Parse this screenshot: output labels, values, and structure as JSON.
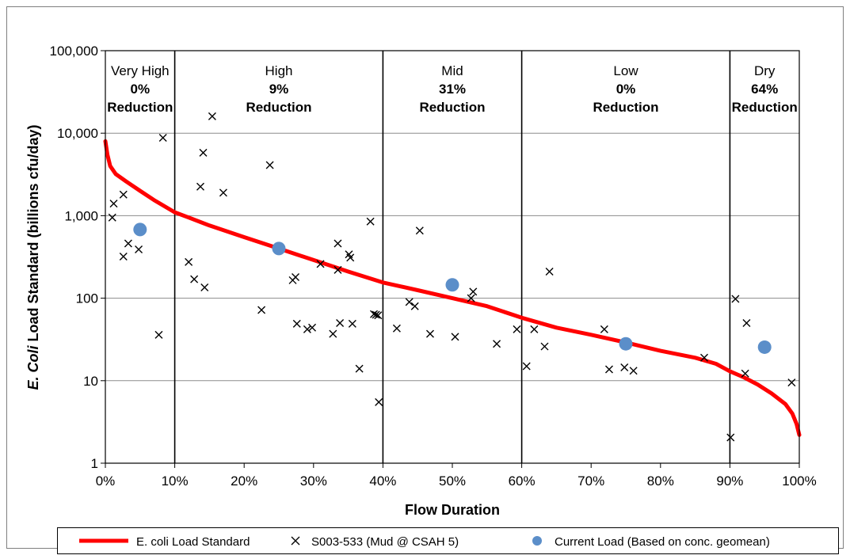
{
  "chart_data": {
    "type": "scatter",
    "xlabel": "Flow Duration",
    "ylabel_italic": "E. Coli",
    "ylabel_rest": " Load Standard (billions cfu/day)",
    "xlim": [
      0,
      100
    ],
    "ylim": [
      1,
      100000
    ],
    "yscale": "log",
    "grid": true,
    "x_ticks": [
      0,
      10,
      20,
      30,
      40,
      50,
      60,
      70,
      80,
      90,
      100
    ],
    "x_tick_labels": [
      "0%",
      "10%",
      "20%",
      "30%",
      "40%",
      "50%",
      "60%",
      "70%",
      "80%",
      "90%",
      "100%"
    ],
    "y_ticks": [
      1,
      10,
      100,
      1000,
      10000,
      100000
    ],
    "y_tick_labels": [
      "1",
      "10",
      "100",
      "1,000",
      "10,000",
      "100,000"
    ],
    "zones": [
      {
        "name": "Very High",
        "pct": "0%",
        "action": "Reduction",
        "from": 0,
        "to": 10
      },
      {
        "name": "High",
        "pct": "9%",
        "action": "Reduction",
        "from": 10,
        "to": 40
      },
      {
        "name": "Mid",
        "pct": "31%",
        "action": "Reduction",
        "from": 40,
        "to": 60
      },
      {
        "name": "Low",
        "pct": "0%",
        "action": "Reduction",
        "from": 60,
        "to": 90
      },
      {
        "name": "Dry",
        "pct": "64%",
        "action": "Reduction",
        "from": 90,
        "to": 100
      }
    ],
    "series": [
      {
        "name": "E. coli Load Standard",
        "kind": "line",
        "color": "#ff0000",
        "points": [
          [
            0,
            8000
          ],
          [
            0.3,
            5500
          ],
          [
            0.7,
            4000
          ],
          [
            1.5,
            3200
          ],
          [
            3,
            2600
          ],
          [
            5,
            2000
          ],
          [
            7,
            1550
          ],
          [
            10,
            1100
          ],
          [
            12,
            950
          ],
          [
            15,
            760
          ],
          [
            20,
            550
          ],
          [
            25,
            400
          ],
          [
            30,
            290
          ],
          [
            35,
            210
          ],
          [
            40,
            155
          ],
          [
            45,
            125
          ],
          [
            50,
            100
          ],
          [
            55,
            80
          ],
          [
            60,
            58
          ],
          [
            65,
            44
          ],
          [
            70,
            36
          ],
          [
            75,
            29
          ],
          [
            80,
            23
          ],
          [
            85,
            19
          ],
          [
            88,
            16
          ],
          [
            90,
            13
          ],
          [
            92,
            11
          ],
          [
            94,
            9
          ],
          [
            96,
            7
          ],
          [
            98,
            5.2
          ],
          [
            99,
            4
          ],
          [
            99.6,
            3
          ],
          [
            100,
            2.2
          ]
        ]
      },
      {
        "name": "S003-533 (Mud @ CSAH 5)",
        "kind": "scatter",
        "marker": "x",
        "color": "#000000",
        "points": [
          [
            1,
            950
          ],
          [
            1.2,
            1400
          ],
          [
            2.6,
            1800
          ],
          [
            2.6,
            320
          ],
          [
            3.3,
            460
          ],
          [
            4.8,
            390
          ],
          [
            7.7,
            36
          ],
          [
            8.3,
            8800
          ],
          [
            12,
            275
          ],
          [
            12.8,
            170
          ],
          [
            13.7,
            2250
          ],
          [
            14.1,
            5800
          ],
          [
            14.3,
            135
          ],
          [
            15.4,
            16000
          ],
          [
            17,
            1900
          ],
          [
            22.5,
            72
          ],
          [
            23.7,
            4100
          ],
          [
            27,
            165
          ],
          [
            27.4,
            180
          ],
          [
            27.6,
            49
          ],
          [
            29.1,
            42
          ],
          [
            29.8,
            44
          ],
          [
            31,
            260
          ],
          [
            32.8,
            37
          ],
          [
            33.5,
            460
          ],
          [
            33.5,
            220
          ],
          [
            33.8,
            50
          ],
          [
            35.1,
            340
          ],
          [
            35.3,
            310
          ],
          [
            35.6,
            49
          ],
          [
            36.6,
            14
          ],
          [
            38.2,
            850
          ],
          [
            38.7,
            64
          ],
          [
            39,
            63
          ],
          [
            39.3,
            62
          ],
          [
            39.4,
            5.5
          ],
          [
            42,
            43
          ],
          [
            43.8,
            90
          ],
          [
            44.6,
            80
          ],
          [
            45.3,
            660
          ],
          [
            46.8,
            37
          ],
          [
            50.4,
            34
          ],
          [
            52.7,
            100
          ],
          [
            53,
            120
          ],
          [
            56.4,
            28
          ],
          [
            59.3,
            42
          ],
          [
            60.7,
            15
          ],
          [
            61.8,
            42
          ],
          [
            63.3,
            26
          ],
          [
            64,
            210
          ],
          [
            71.9,
            42
          ],
          [
            72.6,
            13.7
          ],
          [
            74.8,
            14.5
          ],
          [
            76.1,
            13.2
          ],
          [
            86.3,
            19
          ],
          [
            90.1,
            2.05
          ],
          [
            90.8,
            98
          ],
          [
            92.2,
            12.2
          ],
          [
            92.4,
            50
          ],
          [
            98.9,
            9.5
          ]
        ]
      },
      {
        "name": "Current Load (Based on conc. geomean)",
        "kind": "scatter",
        "marker": "circle",
        "color": "#5b8ec9",
        "points": [
          [
            5,
            680
          ],
          [
            25,
            400
          ],
          [
            50,
            145
          ],
          [
            75,
            28
          ],
          [
            95,
            25.5
          ]
        ]
      }
    ]
  }
}
